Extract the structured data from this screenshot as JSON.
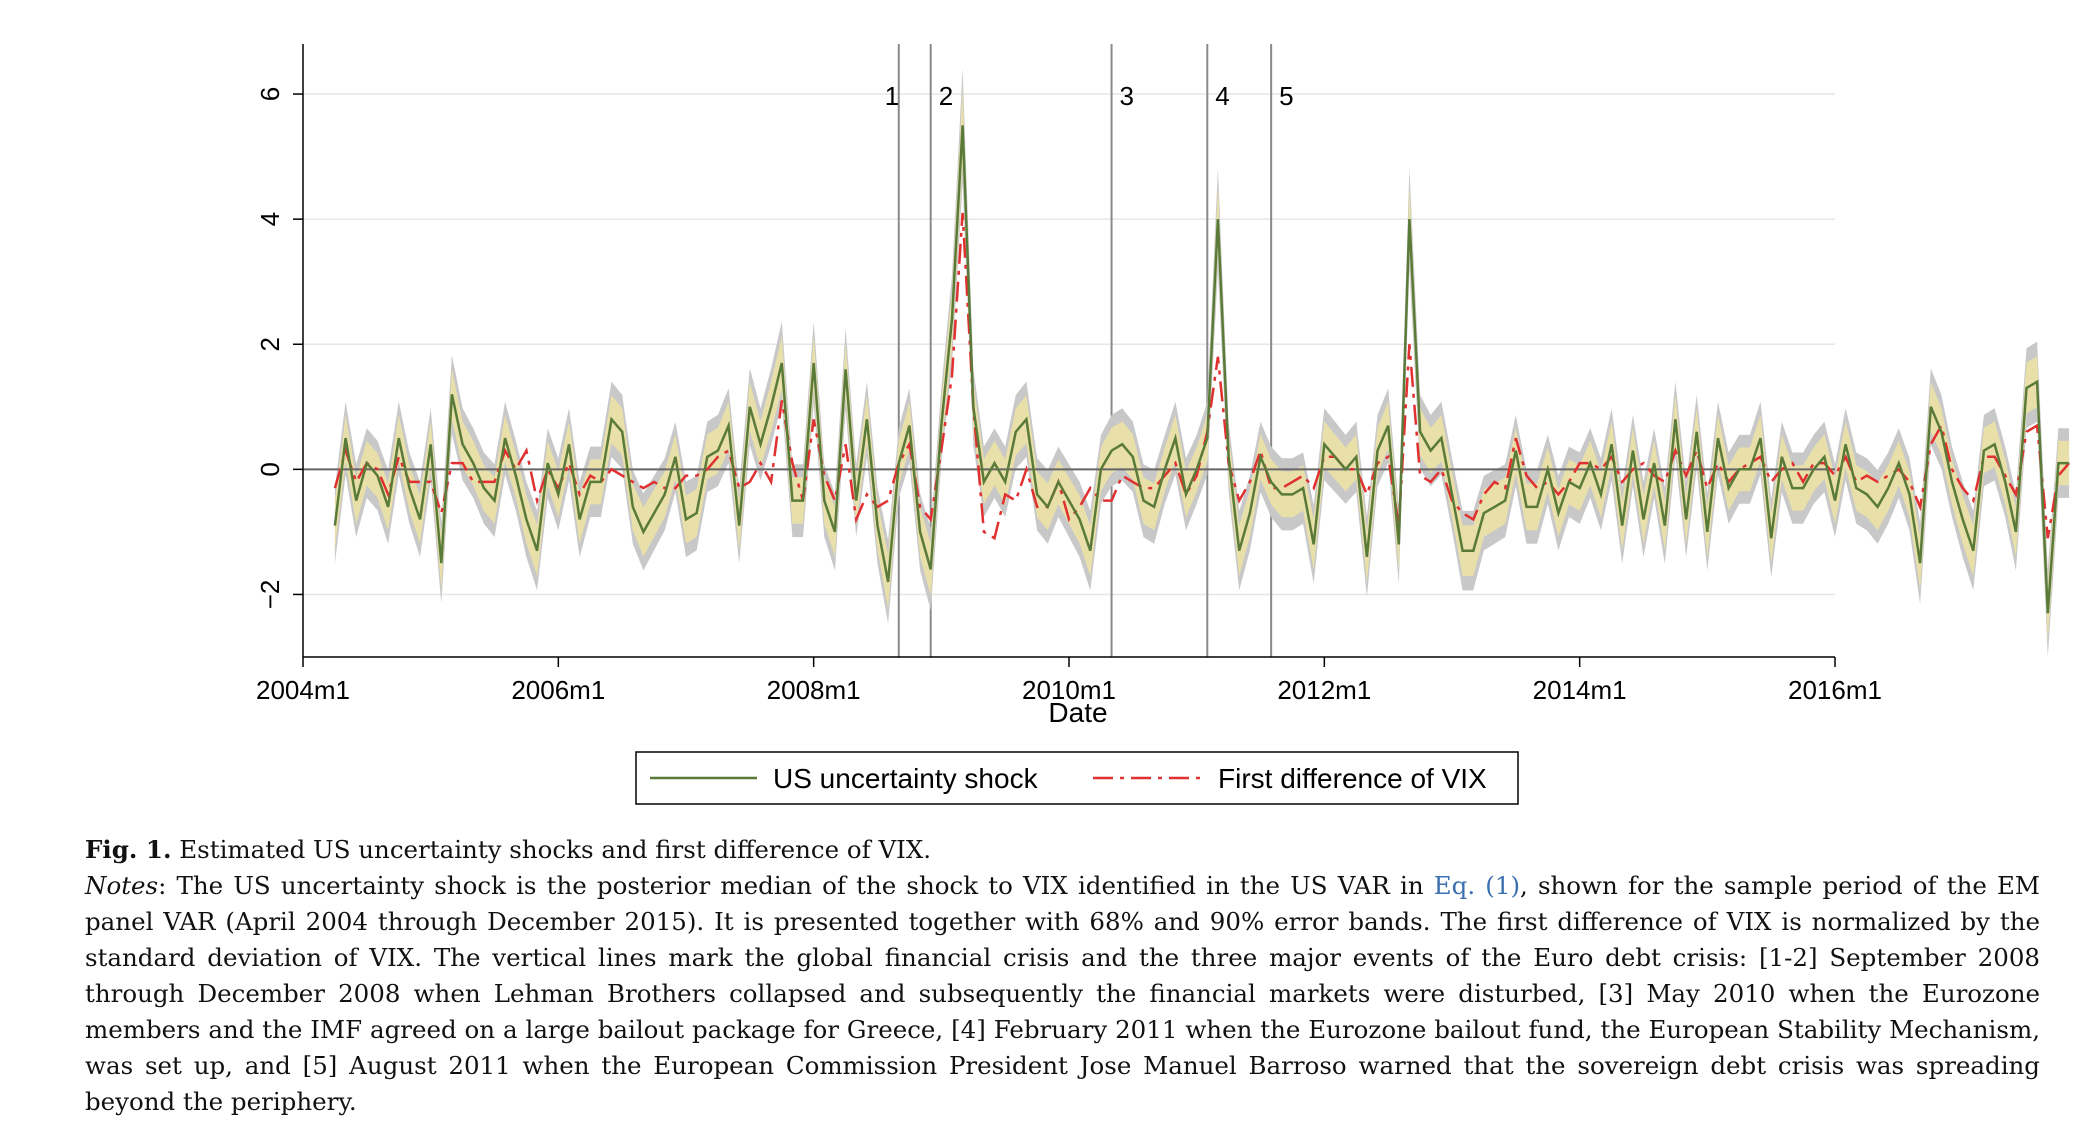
{
  "chart_data": {
    "type": "line",
    "xlabel": "Date",
    "ylabel": "",
    "ylim": [
      -3,
      6.8
    ],
    "yticks": [
      -2,
      0,
      2,
      4,
      6
    ],
    "ytick_labels": [
      "−2",
      "0",
      "2",
      "4",
      "6"
    ],
    "xlim": [
      "2004m1",
      "2016m1"
    ],
    "xticks": [
      "2004m1",
      "2006m1",
      "2008m1",
      "2010m1",
      "2012m1",
      "2014m1",
      "2016m1"
    ],
    "x_start": "2004m4",
    "x_end": "2015m12",
    "grid": "horizontal",
    "legend_position": "bottom",
    "event_lines": [
      {
        "label": "1",
        "date": "2008m9"
      },
      {
        "label": "2",
        "date": "2008m12"
      },
      {
        "label": "3",
        "date": "2010m5"
      },
      {
        "label": "4",
        "date": "2011m2"
      },
      {
        "label": "5",
        "date": "2011m8"
      }
    ],
    "series": [
      {
        "name": "US uncertainty shock",
        "color": "#5a7a3a",
        "band68_color": "#e8e0a8",
        "band90_color": "#c8c8c8",
        "values": [
          -0.9,
          0.5,
          -0.5,
          0.1,
          -0.1,
          -0.6,
          0.5,
          -0.3,
          -0.8,
          0.4,
          -1.5,
          1.2,
          0.4,
          0.1,
          -0.3,
          -0.5,
          0.5,
          -0.1,
          -0.8,
          -1.3,
          0.1,
          -0.4,
          0.4,
          -0.8,
          -0.2,
          -0.2,
          0.8,
          0.6,
          -0.6,
          -1,
          -0.7,
          -0.4,
          0.2,
          -0.8,
          -0.7,
          0.2,
          0.3,
          0.7,
          -0.9,
          1,
          0.4,
          1,
          1.7,
          -0.5,
          -0.5,
          1.7,
          -0.5,
          -1,
          1.6,
          -0.5,
          0.8,
          -0.9,
          -1.8,
          0.1,
          0.7,
          -1,
          -1.6,
          0.7,
          2.4,
          5.5,
          1,
          -0.2,
          0.1,
          -0.2,
          0.6,
          0.8,
          -0.4,
          -0.6,
          -0.2,
          -0.5,
          -0.8,
          -1.3,
          0,
          0.3,
          0.4,
          0.2,
          -0.5,
          -0.6,
          0,
          0.5,
          -0.4,
          0,
          0.5,
          4,
          0.2,
          -1.3,
          -0.7,
          0.2,
          -0.2,
          -0.4,
          -0.4,
          -0.3,
          -1.2,
          0.4,
          0.2,
          0,
          0.2,
          -1.4,
          0.3,
          0.7,
          -1.2,
          4,
          0.6,
          0.3,
          0.5,
          -0.4,
          -1.3,
          -1.3,
          -0.7,
          -0.6,
          -0.5,
          0.3,
          -0.6,
          -0.6,
          0,
          -0.7,
          -0.2,
          -0.3,
          0.1,
          -0.4,
          0.4,
          -0.9,
          0.3,
          -0.8,
          0.1,
          -0.9,
          0.8,
          -0.8,
          0.6,
          -1,
          0.5,
          -0.3,
          0,
          0,
          0.5,
          -1.1,
          0.2,
          -0.3,
          -0.3,
          0,
          0.2,
          -0.5,
          0.4,
          -0.3,
          -0.4,
          -0.6,
          -0.3,
          0.1,
          -0.4,
          -1.5,
          1,
          0.6,
          -0.2,
          -0.8,
          -1.3,
          0.3,
          0.4,
          -0.2,
          -1,
          1.3,
          1.4,
          -2.3,
          0.1,
          0.1
        ],
        "band68_halfwidth": 0.35,
        "band90_halfwidth": 0.55
      },
      {
        "name": "First difference of VIX",
        "color": "#e03030",
        "values": [
          -0.3,
          0.3,
          -0.2,
          0.1,
          0,
          -0.4,
          0.2,
          -0.2,
          -0.2,
          -0.2,
          -0.7,
          0.1,
          0.1,
          -0.2,
          -0.2,
          -0.2,
          0.3,
          0,
          0.3,
          -0.5,
          0,
          -0.3,
          0.1,
          -0.4,
          -0.1,
          -0.2,
          0,
          -0.1,
          -0.2,
          -0.3,
          -0.2,
          -0.3,
          -0.3,
          -0.1,
          -0.1,
          0,
          0.2,
          0.3,
          -0.3,
          -0.2,
          0.1,
          -0.2,
          1.1,
          0.1,
          -0.5,
          0.8,
          -0.1,
          -0.5,
          0.4,
          -0.8,
          -0.4,
          -0.6,
          -0.5,
          0.1,
          0.4,
          -0.6,
          -0.8,
          0.3,
          1.5,
          4.1,
          1,
          -1,
          -1.1,
          -0.4,
          -0.5,
          0,
          -0.6,
          -0.6,
          -0.2,
          -0.8,
          -0.6,
          -0.3,
          -0.5,
          -0.5,
          -0.1,
          -0.2,
          -0.3,
          -0.3,
          -0.1,
          0.1,
          -0.4,
          -0.1,
          0.6,
          1.8,
          0.1,
          -0.5,
          -0.2,
          0.3,
          -0.3,
          -0.3,
          -0.2,
          -0.1,
          -0.3,
          0.2,
          0.2,
          0,
          0,
          -0.4,
          0.1,
          0.2,
          -0.9,
          2,
          -0.1,
          -0.2,
          0,
          -0.5,
          -0.7,
          -0.8,
          -0.4,
          -0.2,
          -0.3,
          0.5,
          -0.1,
          -0.3,
          -0.2,
          -0.4,
          -0.2,
          0.1,
          0.1,
          0,
          0.2,
          -0.2,
          0,
          0.1,
          -0.1,
          -0.2,
          0.3,
          -0.1,
          0.3,
          -0.3,
          0.1,
          -0.2,
          0,
          0.1,
          0.2,
          -0.2,
          0,
          0.1,
          -0.2,
          0.1,
          0.1,
          -0.1,
          0.2,
          -0.2,
          -0.1,
          -0.2,
          -0.1,
          0,
          -0.2,
          -0.6,
          0.4,
          0.7,
          0,
          -0.3,
          -0.5,
          0.2,
          0.2,
          -0.1,
          -0.4,
          0.6,
          0.7,
          -1.1,
          -0.1,
          0.1
        ]
      }
    ]
  },
  "caption": {
    "fig_label": "Fig. 1.",
    "title": "Estimated US uncertainty shocks and first difference of VIX.",
    "notes_label": "Notes",
    "notes_part1": ": The US uncertainty shock is the posterior median of the shock to VIX identified in the US VAR in ",
    "eq_link": "Eq. (1)",
    "notes_part2": ", shown for the sample period of the EM panel VAR (April 2004 through December 2015). It is presented together with 68% and 90% error bands. The first difference of VIX is normalized by the standard deviation of VIX. The vertical lines mark the global financial crisis and the three major events of the Euro debt crisis: [1-2] September 2008 through December 2008 when Lehman Brothers collapsed and subsequently the financial markets were disturbed, [3] May 2010 when the Eurozone members and the IMF agreed on a large bailout package for Greece, [4] February 2011 when the Eurozone bailout fund, the European Stability Mechanism, was set up, and [5] August 2011 when the European Commission President Jose Manuel Barroso warned that the sovereign debt crisis was spreading beyond the periphery."
  }
}
